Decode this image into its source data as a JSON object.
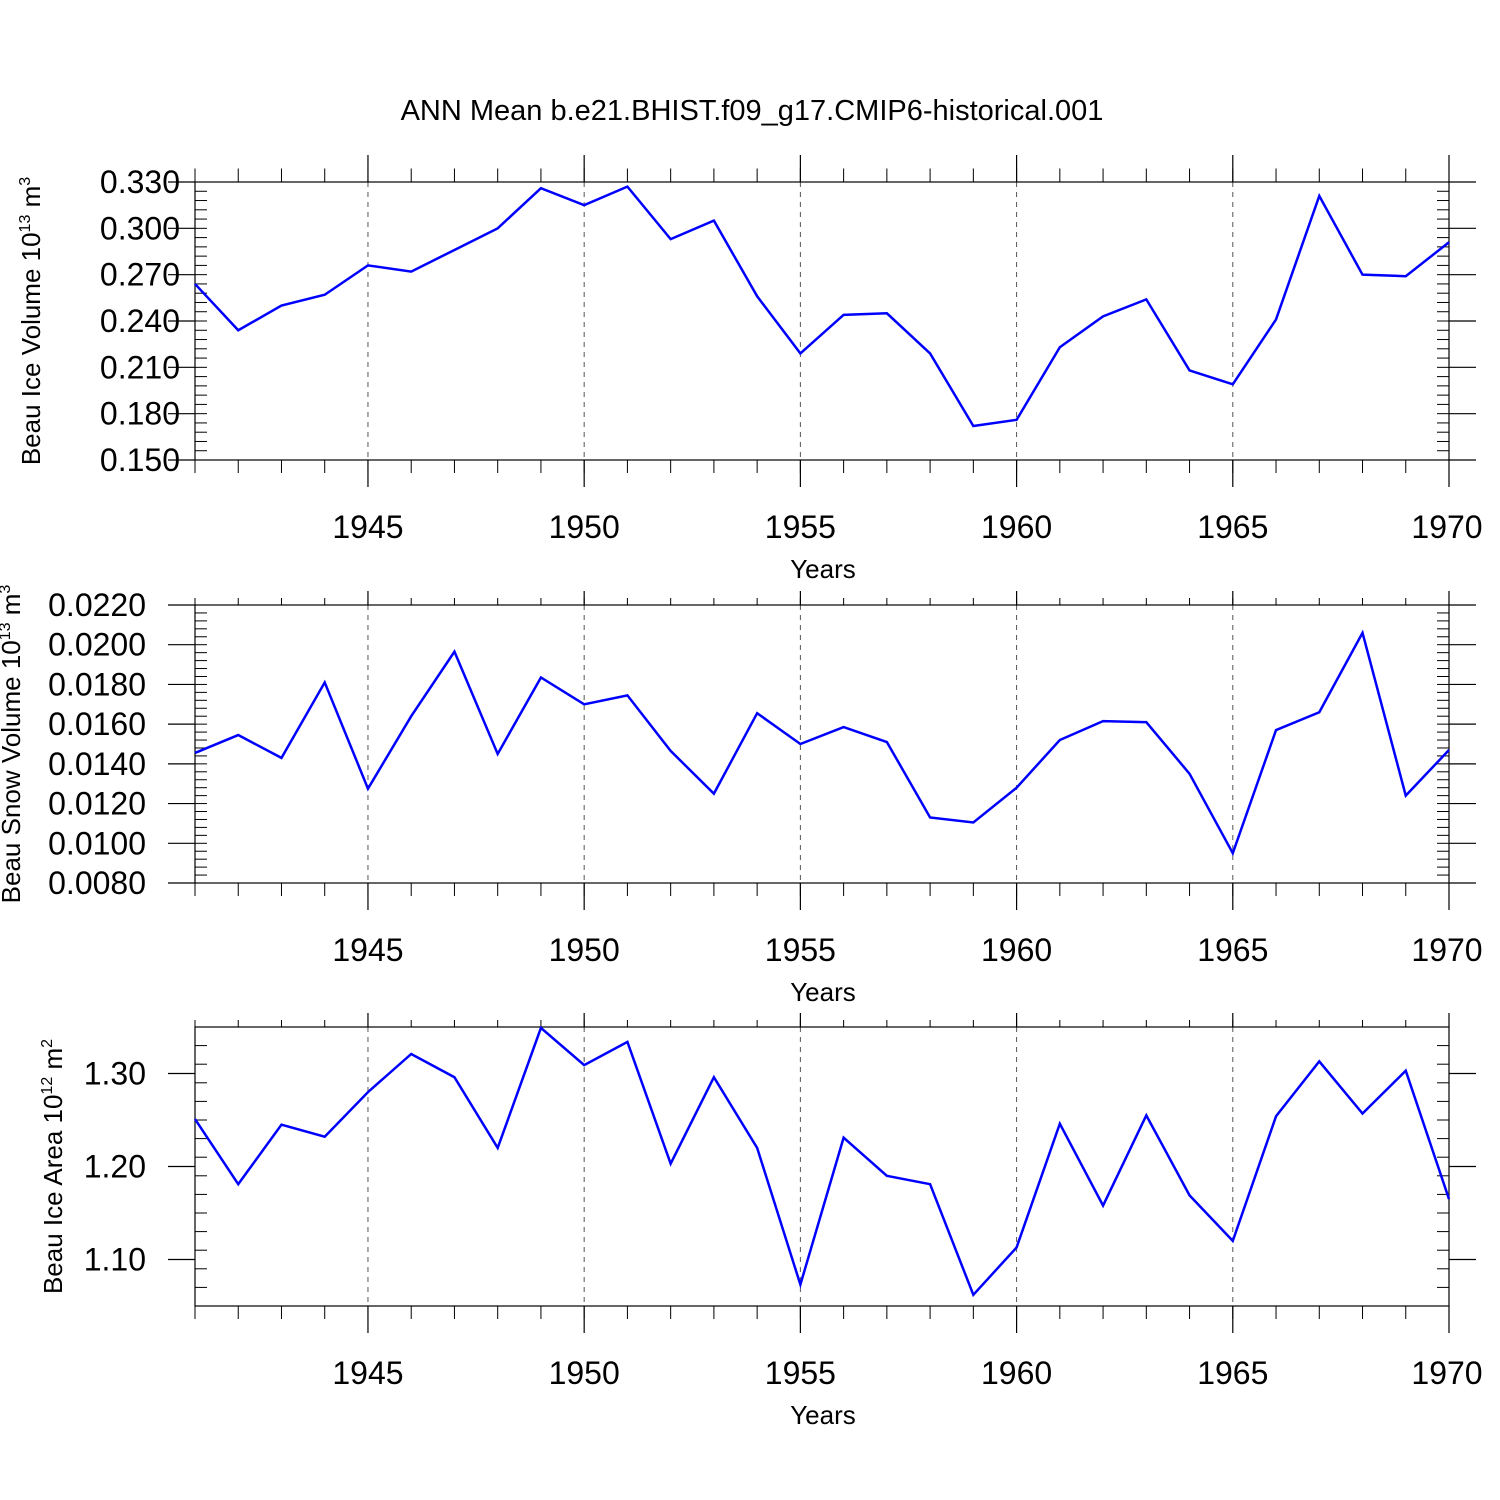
{
  "figure_title": "ANN Mean b.e21.BHIST.f09_g17.CMIP6-historical.001",
  "colors": {
    "series": "#0000ff",
    "axis": "#000000",
    "grid": "#555555"
  },
  "chart_data": [
    {
      "type": "line",
      "title": "ANN Mean b.e21.BHIST.f09_g17.CMIP6-historical.001",
      "xlabel": "Years",
      "ylabel": {
        "base": "Beau Ice Volume 10",
        "exp": "13",
        "unit": " m",
        "unit_exp": "3"
      },
      "xlim": [
        1941,
        1970
      ],
      "ylim": [
        0.15,
        0.33
      ],
      "x_ticks": [
        1945,
        1950,
        1955,
        1960,
        1965,
        1970
      ],
      "x_tick_labels": [
        "1945",
        "1950",
        "1955",
        "1960",
        "1965",
        "1970"
      ],
      "y_ticks": [
        0.15,
        0.18,
        0.21,
        0.24,
        0.27,
        0.3,
        0.33
      ],
      "y_tick_labels": [
        "0.150",
        "0.180",
        "0.210",
        "0.240",
        "0.270",
        "0.300",
        "0.330"
      ],
      "y_minor_step": 0.006,
      "grid": "vertical dashed at major x ticks",
      "series": [
        {
          "name": "Beau Ice Volume",
          "x": [
            1941,
            1942,
            1943,
            1944,
            1945,
            1946,
            1947,
            1948,
            1949,
            1950,
            1951,
            1952,
            1953,
            1954,
            1955,
            1956,
            1957,
            1958,
            1959,
            1960,
            1961,
            1962,
            1963,
            1964,
            1965,
            1966,
            1967,
            1968,
            1969,
            1970
          ],
          "values": [
            0.264,
            0.234,
            0.25,
            0.257,
            0.276,
            0.272,
            0.286,
            0.3,
            0.326,
            0.315,
            0.327,
            0.293,
            0.305,
            0.256,
            0.219,
            0.244,
            0.245,
            0.219,
            0.172,
            0.176,
            0.223,
            0.243,
            0.254,
            0.208,
            0.199,
            0.241,
            0.321,
            0.27,
            0.269,
            0.291
          ]
        }
      ]
    },
    {
      "type": "line",
      "xlabel": "Years",
      "ylabel": {
        "base": "Beau Snow Volume 10",
        "exp": "13",
        "unit": " m",
        "unit_exp": "3"
      },
      "xlim": [
        1941,
        1970
      ],
      "ylim": [
        0.008,
        0.022
      ],
      "x_ticks": [
        1945,
        1950,
        1955,
        1960,
        1965,
        1970
      ],
      "x_tick_labels": [
        "1945",
        "1950",
        "1955",
        "1960",
        "1965",
        "1970"
      ],
      "y_ticks": [
        0.008,
        0.01,
        0.012,
        0.014,
        0.016,
        0.018,
        0.02,
        0.022
      ],
      "y_tick_labels": [
        "0.0080",
        "0.0100",
        "0.0120",
        "0.0140",
        "0.0160",
        "0.0180",
        "0.0200",
        "0.0220"
      ],
      "y_minor_step": 0.0004,
      "grid": "vertical dashed at major x ticks",
      "series": [
        {
          "name": "Beau Snow Volume",
          "x": [
            1941,
            1942,
            1943,
            1944,
            1945,
            1946,
            1947,
            1948,
            1949,
            1950,
            1951,
            1952,
            1953,
            1954,
            1955,
            1956,
            1957,
            1958,
            1959,
            1960,
            1961,
            1962,
            1963,
            1964,
            1965,
            1966,
            1967,
            1968,
            1969,
            1970
          ],
          "values": [
            0.01455,
            0.01545,
            0.0143,
            0.0181,
            0.01275,
            0.0164,
            0.01965,
            0.0145,
            0.01835,
            0.017,
            0.01745,
            0.01465,
            0.0125,
            0.01655,
            0.015,
            0.01585,
            0.0151,
            0.0113,
            0.01105,
            0.0128,
            0.0152,
            0.01615,
            0.0161,
            0.0135,
            0.0095,
            0.0157,
            0.0166,
            0.0206,
            0.0124,
            0.0147
          ]
        }
      ]
    },
    {
      "type": "line",
      "xlabel": "Years",
      "ylabel": {
        "base": "Beau Ice Area 10",
        "exp": "12",
        "unit": " m",
        "unit_exp": "2"
      },
      "xlim": [
        1941,
        1970
      ],
      "ylim": [
        1.05,
        1.35
      ],
      "x_ticks": [
        1945,
        1950,
        1955,
        1960,
        1965,
        1970
      ],
      "x_tick_labels": [
        "1945",
        "1950",
        "1955",
        "1960",
        "1965",
        "1970"
      ],
      "y_ticks": [
        1.1,
        1.2,
        1.3
      ],
      "y_tick_labels": [
        "1.10",
        "1.20",
        "1.30"
      ],
      "y_minor_step": 0.02,
      "grid": "vertical dashed at major x ticks",
      "series": [
        {
          "name": "Beau Ice Area",
          "x": [
            1941,
            1942,
            1943,
            1944,
            1945,
            1946,
            1947,
            1948,
            1949,
            1950,
            1951,
            1952,
            1953,
            1954,
            1955,
            1956,
            1957,
            1958,
            1959,
            1960,
            1961,
            1962,
            1963,
            1964,
            1965,
            1966,
            1967,
            1968,
            1969,
            1970
          ],
          "values": [
            1.251,
            1.181,
            1.245,
            1.232,
            1.28,
            1.321,
            1.296,
            1.22,
            1.349,
            1.309,
            1.334,
            1.203,
            1.296,
            1.22,
            1.073,
            1.231,
            1.19,
            1.181,
            1.062,
            1.113,
            1.246,
            1.158,
            1.255,
            1.169,
            1.12,
            1.254,
            1.313,
            1.257,
            1.303,
            1.165
          ]
        }
      ]
    }
  ]
}
